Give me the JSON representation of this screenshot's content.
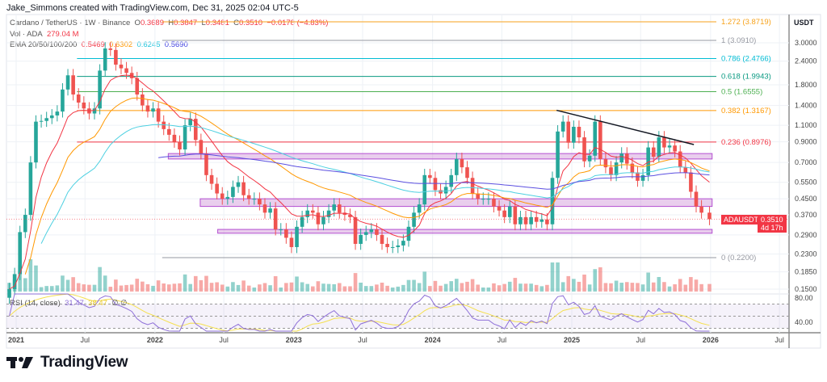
{
  "credit": "Jake_Simmons created with TradingView.com, Dec 31, 2025 02:04 UTC-5",
  "legend": {
    "symbol": "Cardano / TetherUS · 1W · Binance",
    "o_label": "O",
    "o": "0.3689",
    "h_label": "H",
    "h": "0.3847",
    "l_label": "L",
    "l": "0.3481",
    "c_label": "C",
    "c": "0.3510",
    "change": "−0.0178 (−4.83%)",
    "vol_label": "Vol · ADA",
    "vol": "279.04 M",
    "ema_label": "EMA 20/50/100/200",
    "ema20": "0.5469",
    "ema50": "0.6302",
    "ema100": "0.6245",
    "ema200": "0.5690",
    "rsi_label": "RSI (14, close)",
    "rsi_value": "31.47",
    "rsi_ma": "38.47",
    "rsi_extra": "∅ ∅"
  },
  "price_label": {
    "symbol": "ADAUSDT",
    "price": "0.3510",
    "countdown": "4d 17h"
  },
  "logo_text": "TradingView",
  "colors": {
    "up": "#26a69a",
    "down": "#ef5350",
    "ema20": "#f23645",
    "ema50": "#ff9800",
    "ema100": "#4dd0e1",
    "ema200": "#5b4fe0",
    "rsi": "#8e6fd8",
    "rsi_ma": "#f5e050",
    "zone": "#ce93d8",
    "trendline": "#131722"
  },
  "chart_data": {
    "type": "candlestick",
    "title": "Cardano / TetherUS · 1W · Binance",
    "yscale": "log",
    "ylabel": "USDT",
    "ylim": [
      0.14,
      4.1
    ],
    "yticks": [
      "3.0000",
      "2.4000",
      "1.8000",
      "1.4000",
      "1.1000",
      "0.9000",
      "0.7000",
      "0.5500",
      "0.4500",
      "0.3700",
      "0.2900",
      "0.2300",
      "0.1850",
      "0.1500"
    ],
    "xticks": [
      {
        "label": "2021",
        "date": "2021-01-01"
      },
      {
        "label": "Jul",
        "date": "2021-07-01"
      },
      {
        "label": "2022",
        "date": "2022-01-01"
      },
      {
        "label": "Jul",
        "date": "2022-07-01"
      },
      {
        "label": "2023",
        "date": "2023-01-01"
      },
      {
        "label": "Jul",
        "date": "2023-07-01"
      },
      {
        "label": "2024",
        "date": "2024-01-01"
      },
      {
        "label": "Jul",
        "date": "2024-07-01"
      },
      {
        "label": "2025",
        "date": "2025-01-01"
      },
      {
        "label": "Jul",
        "date": "2025-07-01"
      },
      {
        "label": "2026",
        "date": "2026-01-01"
      },
      {
        "label": "Jul",
        "date": "2026-07-01"
      }
    ],
    "grid": true,
    "closes": [
      [
        "2020-12-14",
        0.15
      ],
      [
        "2020-12-28",
        0.18
      ],
      [
        "2021-01-11",
        0.3
      ],
      [
        "2021-01-25",
        0.37
      ],
      [
        "2021-02-08",
        0.7
      ],
      [
        "2021-02-22",
        1.15
      ],
      [
        "2021-03-08",
        1.16
      ],
      [
        "2021-03-22",
        1.2
      ],
      [
        "2021-04-05",
        1.24
      ],
      [
        "2021-04-19",
        1.3
      ],
      [
        "2021-05-03",
        1.7
      ],
      [
        "2021-05-17",
        2.02
      ],
      [
        "2021-05-31",
        1.6
      ],
      [
        "2021-06-14",
        1.45
      ],
      [
        "2021-06-28",
        1.35
      ],
      [
        "2021-07-12",
        1.27
      ],
      [
        "2021-07-26",
        1.35
      ],
      [
        "2021-08-09",
        2.14
      ],
      [
        "2021-08-23",
        2.8
      ],
      [
        "2021-09-06",
        2.75
      ],
      [
        "2021-09-20",
        2.3
      ],
      [
        "2021-10-04",
        2.2
      ],
      [
        "2021-10-18",
        2.08
      ],
      [
        "2021-11-01",
        1.95
      ],
      [
        "2021-11-15",
        1.6
      ],
      [
        "2021-11-29",
        1.4
      ],
      [
        "2021-12-13",
        1.3
      ],
      [
        "2021-12-27",
        1.35
      ],
      [
        "2022-01-10",
        1.15
      ],
      [
        "2022-01-24",
        1.05
      ],
      [
        "2022-02-07",
        0.98
      ],
      [
        "2022-02-21",
        0.9
      ],
      [
        "2022-03-07",
        0.82
      ],
      [
        "2022-03-21",
        1.1
      ],
      [
        "2022-04-04",
        1.19
      ],
      [
        "2022-04-18",
        0.92
      ],
      [
        "2022-05-02",
        0.78
      ],
      [
        "2022-05-16",
        0.6
      ],
      [
        "2022-05-30",
        0.54
      ],
      [
        "2022-06-13",
        0.48
      ],
      [
        "2022-06-27",
        0.45
      ],
      [
        "2022-07-11",
        0.46
      ],
      [
        "2022-07-25",
        0.52
      ],
      [
        "2022-08-08",
        0.55
      ],
      [
        "2022-08-22",
        0.47
      ],
      [
        "2022-09-05",
        0.45
      ],
      [
        "2022-09-19",
        0.45
      ],
      [
        "2022-10-03",
        0.42
      ],
      [
        "2022-10-17",
        0.38
      ],
      [
        "2022-10-31",
        0.4
      ],
      [
        "2022-11-14",
        0.31
      ],
      [
        "2022-11-28",
        0.31
      ],
      [
        "2022-12-12",
        0.28
      ],
      [
        "2022-12-26",
        0.25
      ],
      [
        "2023-01-09",
        0.32
      ],
      [
        "2023-01-23",
        0.36
      ],
      [
        "2023-02-06",
        0.39
      ],
      [
        "2023-02-20",
        0.38
      ],
      [
        "2023-03-06",
        0.33
      ],
      [
        "2023-03-20",
        0.36
      ],
      [
        "2023-04-03",
        0.39
      ],
      [
        "2023-04-17",
        0.42
      ],
      [
        "2023-05-01",
        0.38
      ],
      [
        "2023-05-15",
        0.37
      ],
      [
        "2023-05-29",
        0.36
      ],
      [
        "2023-06-12",
        0.26
      ],
      [
        "2023-06-26",
        0.29
      ],
      [
        "2023-07-10",
        0.3
      ],
      [
        "2023-07-24",
        0.31
      ],
      [
        "2023-08-07",
        0.29
      ],
      [
        "2023-08-21",
        0.26
      ],
      [
        "2023-09-04",
        0.25
      ],
      [
        "2023-09-18",
        0.25
      ],
      [
        "2023-10-02",
        0.255
      ],
      [
        "2023-10-16",
        0.27
      ],
      [
        "2023-10-30",
        0.32
      ],
      [
        "2023-11-13",
        0.38
      ],
      [
        "2023-11-27",
        0.42
      ],
      [
        "2023-12-11",
        0.6
      ],
      [
        "2023-12-25",
        0.58
      ],
      [
        "2024-01-08",
        0.5
      ],
      [
        "2024-01-22",
        0.48
      ],
      [
        "2024-02-05",
        0.52
      ],
      [
        "2024-02-19",
        0.6
      ],
      [
        "2024-03-04",
        0.73
      ],
      [
        "2024-03-18",
        0.66
      ],
      [
        "2024-04-01",
        0.58
      ],
      [
        "2024-04-15",
        0.48
      ],
      [
        "2024-04-29",
        0.45
      ],
      [
        "2024-05-13",
        0.45
      ],
      [
        "2024-05-27",
        0.45
      ],
      [
        "2024-06-10",
        0.41
      ],
      [
        "2024-06-24",
        0.39
      ],
      [
        "2024-07-08",
        0.36
      ],
      [
        "2024-07-22",
        0.41
      ],
      [
        "2024-08-05",
        0.33
      ],
      [
        "2024-08-19",
        0.36
      ],
      [
        "2024-09-02",
        0.33
      ],
      [
        "2024-09-16",
        0.36
      ],
      [
        "2024-09-30",
        0.34
      ],
      [
        "2024-10-14",
        0.35
      ],
      [
        "2024-10-28",
        0.33
      ],
      [
        "2024-11-11",
        0.58
      ],
      [
        "2024-11-25",
        1.02
      ],
      [
        "2024-12-09",
        1.15
      ],
      [
        "2024-12-23",
        0.89
      ],
      [
        "2025-01-06",
        1.08
      ],
      [
        "2025-01-20",
        0.95
      ],
      [
        "2025-02-03",
        0.71
      ],
      [
        "2025-02-17",
        0.76
      ],
      [
        "2025-03-03",
        1.15
      ],
      [
        "2025-03-17",
        0.73
      ],
      [
        "2025-03-31",
        0.66
      ],
      [
        "2025-04-14",
        0.6
      ],
      [
        "2025-04-28",
        0.7
      ],
      [
        "2025-05-12",
        0.78
      ],
      [
        "2025-05-26",
        0.69
      ],
      [
        "2025-06-09",
        0.62
      ],
      [
        "2025-06-23",
        0.56
      ],
      [
        "2025-07-07",
        0.6
      ],
      [
        "2025-07-21",
        0.84
      ],
      [
        "2025-08-04",
        0.75
      ],
      [
        "2025-08-18",
        0.95
      ],
      [
        "2025-09-01",
        0.84
      ],
      [
        "2025-09-15",
        0.86
      ],
      [
        "2025-09-29",
        0.8
      ],
      [
        "2025-10-13",
        0.66
      ],
      [
        "2025-10-27",
        0.62
      ],
      [
        "2025-11-10",
        0.49
      ],
      [
        "2025-11-24",
        0.41
      ],
      [
        "2025-12-08",
        0.38
      ],
      [
        "2025-12-29",
        0.351
      ]
    ],
    "fib_levels": [
      {
        "label": "1.272 (3.8719)",
        "price": 3.8719,
        "color": "#f7a21b",
        "from": "2022-01-20"
      },
      {
        "label": "1 (3.0910)",
        "price": 3.091,
        "color": "#9598a1",
        "from": "2022-01-20"
      },
      {
        "label": "0.786 (2.4766)",
        "price": 2.4766,
        "color": "#00bcd4",
        "from": "2021-06-10"
      },
      {
        "label": "0.618 (1.9943)",
        "price": 1.9943,
        "color": "#089981",
        "from": "2021-06-10"
      },
      {
        "label": "0.5 (1.6555)",
        "price": 1.6555,
        "color": "#4caf50",
        "from": "2021-06-10"
      },
      {
        "label": "0.382 (1.3167)",
        "price": 1.3167,
        "color": "#ff9800",
        "from": "2021-06-10"
      },
      {
        "label": "0.236 (0.8976)",
        "price": 0.8976,
        "color": "#f23645",
        "from": "2021-06-10"
      },
      {
        "label": "0 (0.2200)",
        "price": 0.22,
        "color": "#9598a1",
        "from": "2022-01-20"
      }
    ],
    "zones": [
      {
        "from": "2022-02-05",
        "to": "2026-01-05",
        "top": 0.78,
        "bottom": 0.73
      },
      {
        "from": "2022-04-30",
        "to": "2026-01-05",
        "top": 0.45,
        "bottom": 0.41
      },
      {
        "from": "2022-06-15",
        "to": "2026-01-05",
        "top": 0.31,
        "bottom": 0.296
      }
    ],
    "trendline": {
      "from": [
        "2024-11-22",
        1.32
      ],
      "to": [
        "2025-11-18",
        0.87
      ]
    },
    "rsi_levels": [
      70,
      50,
      30
    ],
    "rsi_yticks": [
      "80.00",
      "40.00"
    ],
    "last_price": 0.351
  }
}
